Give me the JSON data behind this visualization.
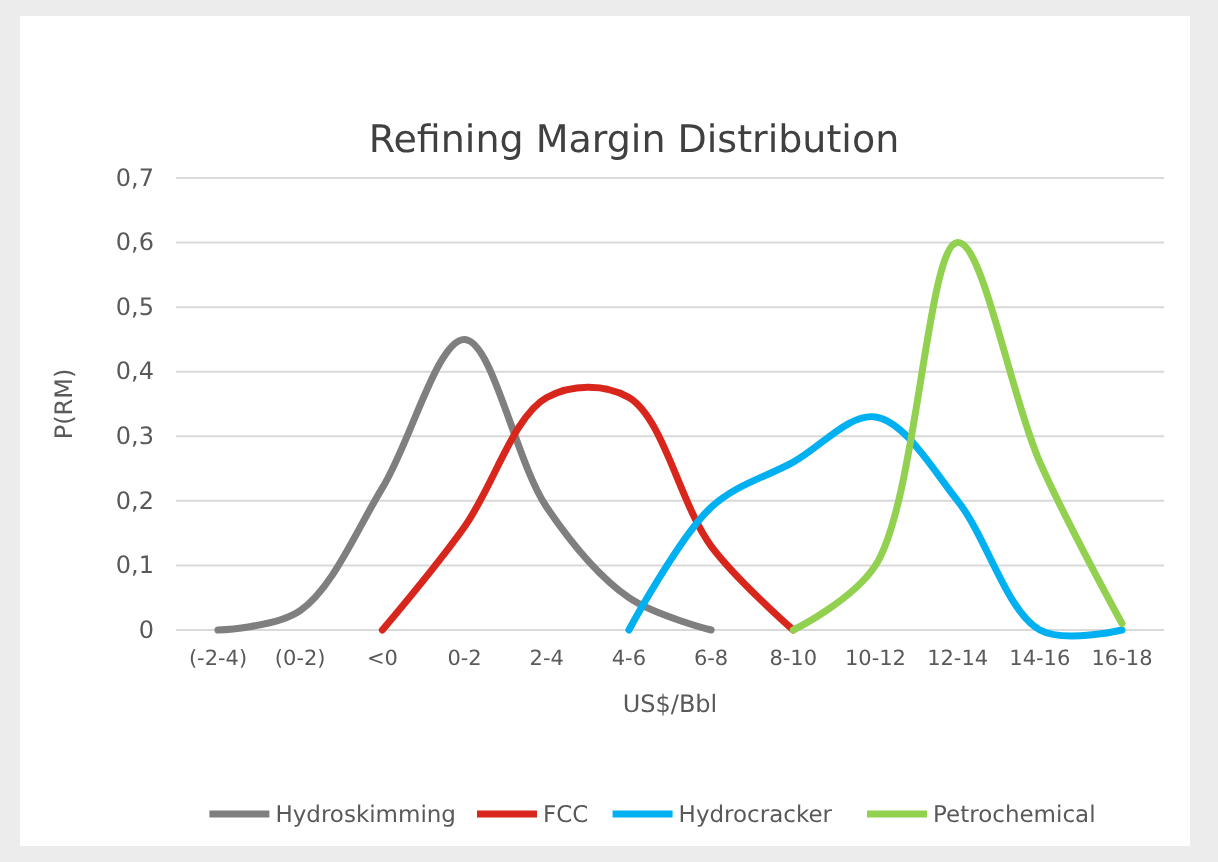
{
  "chart_data": {
    "type": "line",
    "title": "Refining Margin Distribution",
    "xlabel": "US$/Bbl",
    "ylabel": "P(RM)",
    "categories": [
      "(-2-4)",
      "(0-2)",
      "<0",
      "0-2",
      "2-4",
      "4-6",
      "6-8",
      "8-10",
      "10-12",
      "12-14",
      "14-16",
      "16-18"
    ],
    "series": [
      {
        "name": "Hydroskimming",
        "color": "#7f7f7f",
        "values": [
          0,
          0.03,
          0.22,
          0.45,
          0.19,
          0.05,
          0,
          null,
          null,
          null,
          null,
          null
        ]
      },
      {
        "name": "FCC",
        "color": "#d9261c",
        "values": [
          null,
          null,
          0,
          0.16,
          0.36,
          0.36,
          0.13,
          0,
          null,
          null,
          null,
          null
        ]
      },
      {
        "name": "Hydrocracker",
        "color": "#00b0f0",
        "values": [
          null,
          null,
          null,
          null,
          null,
          0,
          0.19,
          0.26,
          0.33,
          0.2,
          0,
          0
        ]
      },
      {
        "name": "Petrochemical",
        "color": "#92d050",
        "values": [
          null,
          null,
          null,
          null,
          null,
          null,
          null,
          0,
          0.1,
          0.6,
          0.26,
          0.01
        ]
      }
    ],
    "ylim": [
      0,
      0.7
    ],
    "yticks": [
      {
        "value": 0,
        "label": "0"
      },
      {
        "value": 0.1,
        "label": "0,1"
      },
      {
        "value": 0.2,
        "label": "0,2"
      },
      {
        "value": 0.3,
        "label": "0,3"
      },
      {
        "value": 0.4,
        "label": "0,4"
      },
      {
        "value": 0.5,
        "label": "0,5"
      },
      {
        "value": 0.6,
        "label": "0,6"
      },
      {
        "value": 0.7,
        "label": "0,7"
      }
    ],
    "grid": "y",
    "legend": "bottom",
    "marker": "none",
    "line_style": "solid"
  }
}
